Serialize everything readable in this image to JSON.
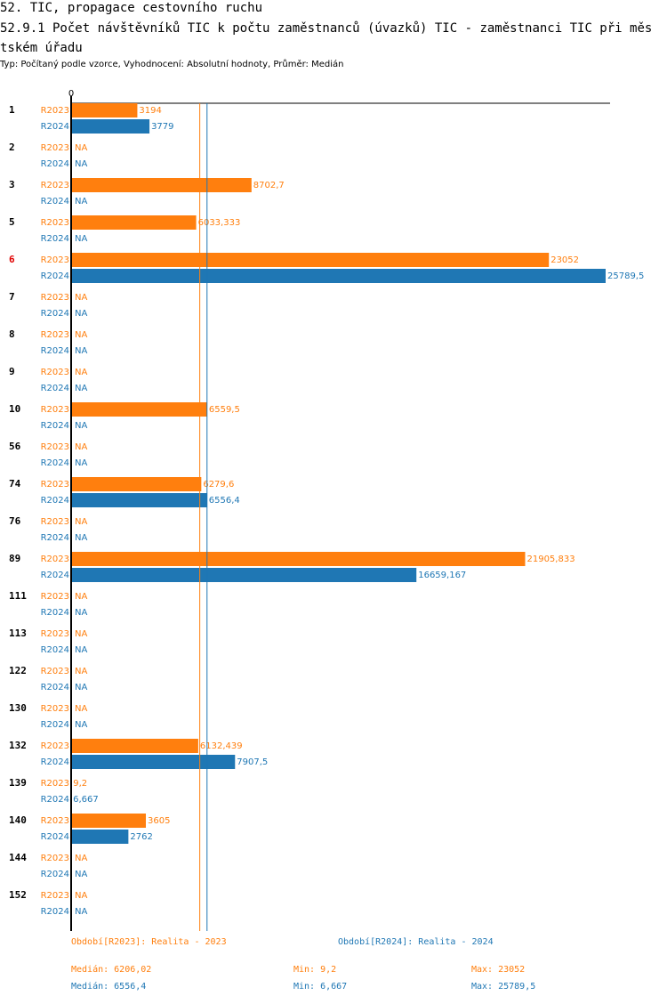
{
  "header": {
    "title": "52. TIC, propagace cestovního ruchu",
    "subtitle": "52.9.1 Počet návštěvníků TIC k počtu zaměstnanců (úvazků) TIC - zaměstnanci TIC při městském úřadu",
    "type_line": "Typ: Počítaný podle vzorce, Vyhodnocení: Absolutní hodnoty, Průměr: Medián"
  },
  "colors": {
    "r2023": "#ff7f0e",
    "r2024": "#1f77b4",
    "highlight": "#e00000"
  },
  "chart_data": {
    "type": "bar",
    "orientation": "horizontal",
    "axis_zero_label": "0",
    "xlim": [
      0,
      25789.5
    ],
    "highlighted_category": "6",
    "categories": [
      "1",
      "2",
      "3",
      "5",
      "6",
      "7",
      "8",
      "9",
      "10",
      "56",
      "74",
      "76",
      "89",
      "111",
      "113",
      "122",
      "130",
      "132",
      "139",
      "140",
      "144",
      "152"
    ],
    "series": [
      {
        "name": "R2023",
        "values": [
          3194,
          null,
          8702.7,
          6033.333,
          23052,
          null,
          null,
          null,
          6559.5,
          null,
          6279.6,
          null,
          21905.833,
          null,
          null,
          null,
          null,
          6132.439,
          9.2,
          3605,
          null,
          null
        ],
        "labels": [
          "3194",
          "NA",
          "8702,7",
          "6033,333",
          "23052",
          "NA",
          "NA",
          "NA",
          "6559,5",
          "NA",
          "6279,6",
          "NA",
          "21905,833",
          "NA",
          "NA",
          "NA",
          "NA",
          "6132,439",
          "9,2",
          "3605",
          "NA",
          "NA"
        ]
      },
      {
        "name": "R2024",
        "values": [
          3779,
          null,
          null,
          null,
          25789.5,
          null,
          null,
          null,
          null,
          null,
          6556.4,
          null,
          16659.167,
          null,
          null,
          null,
          null,
          7907.5,
          6.667,
          2762,
          null,
          null
        ],
        "labels": [
          "3779",
          "NA",
          "NA",
          "NA",
          "25789,5",
          "NA",
          "NA",
          "NA",
          "NA",
          "NA",
          "6556,4",
          "NA",
          "16659,167",
          "NA",
          "NA",
          "NA",
          "NA",
          "7907,5",
          "6,667",
          "2762",
          "NA",
          "NA"
        ]
      }
    ],
    "reference_lines": [
      {
        "series": "R2023",
        "value": 6206.02
      },
      {
        "series": "R2024",
        "value": 6556.4
      }
    ]
  },
  "legend": {
    "r2023": "Období[R2023]: Realita - 2023",
    "r2024": "Období[R2024]: Realita - 2024"
  },
  "stats": {
    "r2023": {
      "median": "Medián: 6206,02",
      "min": "Min: 9,2",
      "max": "Max: 23052"
    },
    "r2024": {
      "median": "Medián: 6556,4",
      "min": "Min: 6,667",
      "max": "Max: 25789,5"
    }
  }
}
